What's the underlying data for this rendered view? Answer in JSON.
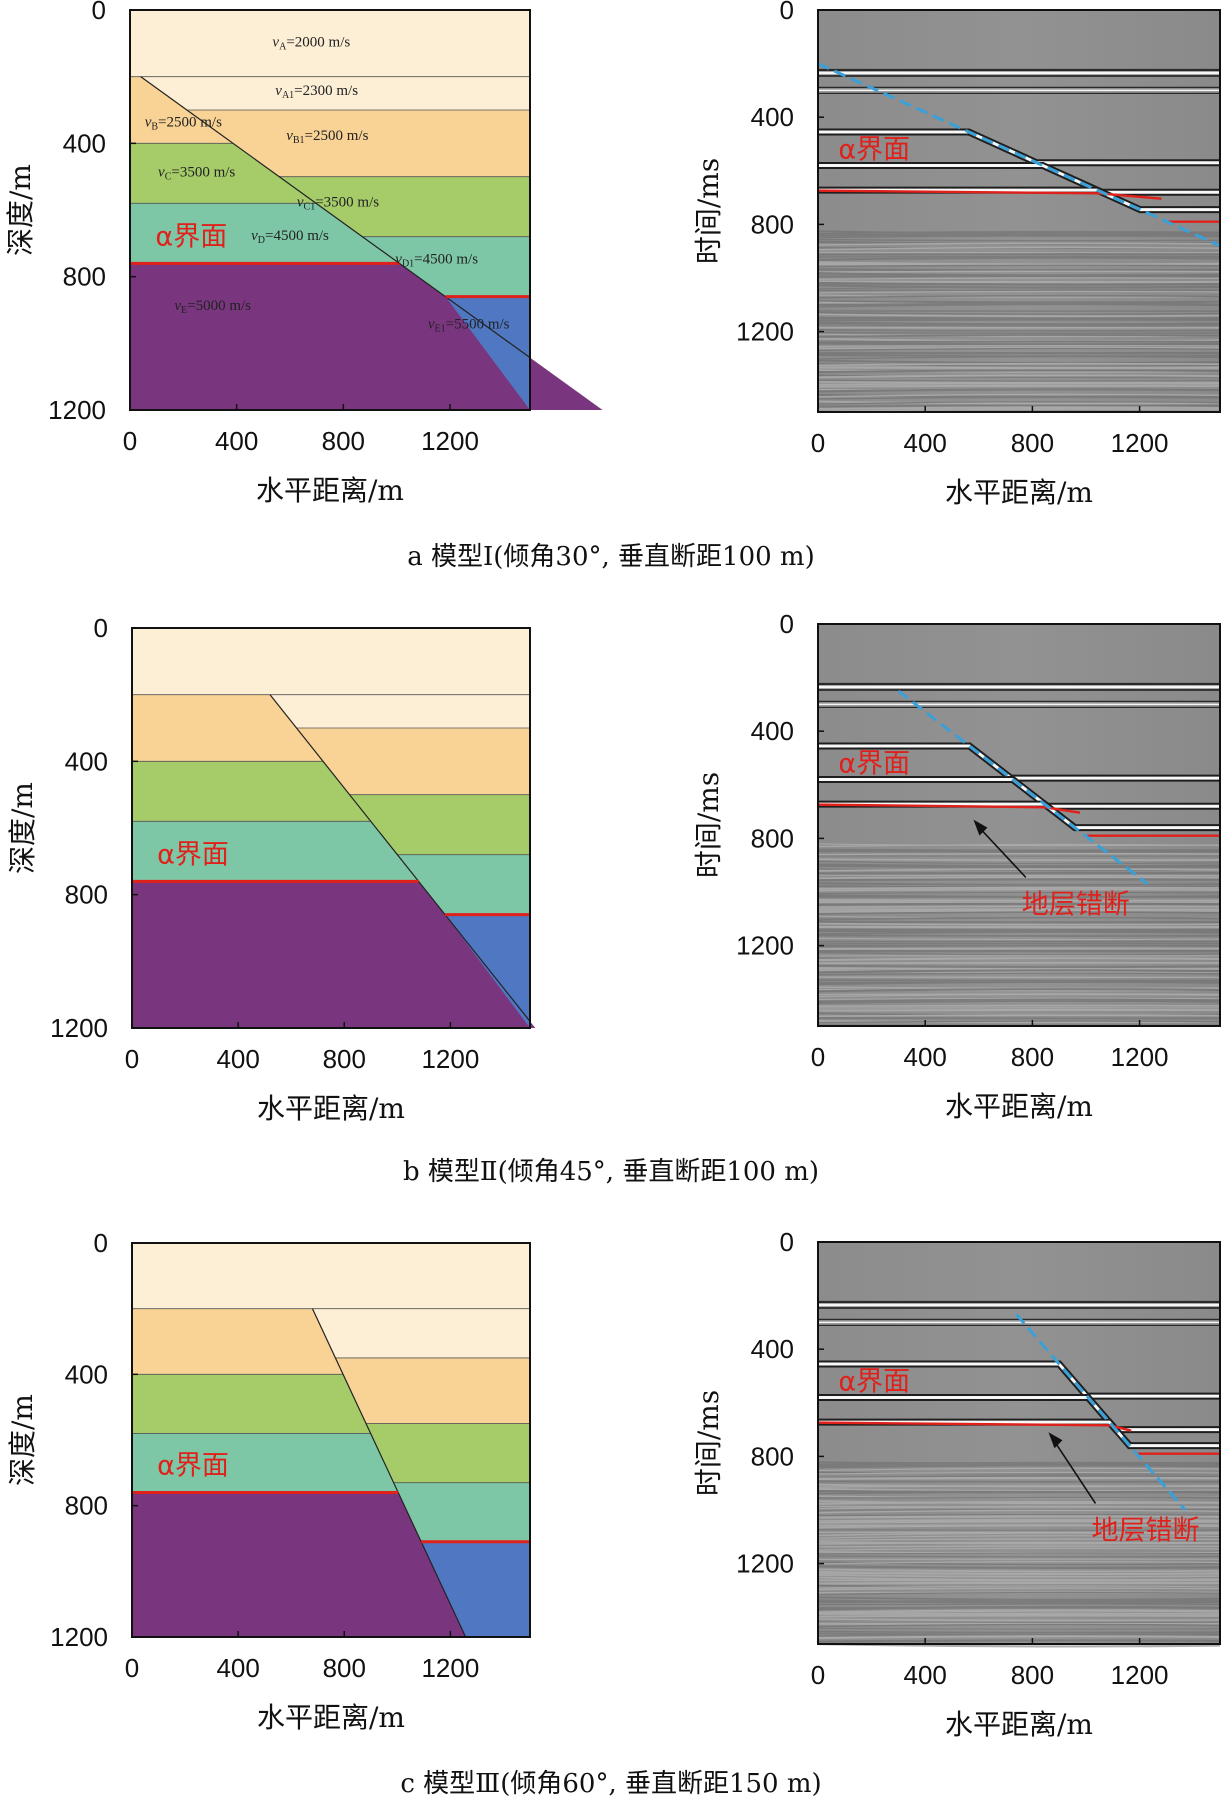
{
  "colors": {
    "layerA": "#fdefd5",
    "layerB": "#f8d395",
    "layerC": "#a6cc6a",
    "layerD": "#7ec7a6",
    "layerE": "#79367f",
    "layerE1": "#4f77c2",
    "alpha": "#e0211b",
    "faultTrace": "#3aa0d8"
  },
  "labels": {
    "depth_axis": "深度/m",
    "time_axis": "时间/ms",
    "distance_axis": "水平距离/m",
    "alpha": "α界面",
    "offset": "地层错断"
  },
  "ticks": {
    "x": [
      "0",
      "400",
      "800",
      "1200"
    ],
    "depth": [
      "0",
      "400",
      "800",
      "1200"
    ],
    "time": [
      "0",
      "400",
      "800",
      "1200"
    ]
  },
  "velocities": [
    {
      "v": "v",
      "sub": "A",
      "text": "=2000 m/s"
    },
    {
      "v": "v",
      "sub": "A1",
      "text": "=2300 m/s"
    },
    {
      "v": "v",
      "sub": "B",
      "text": "=2500 m/s"
    },
    {
      "v": "v",
      "sub": "B1",
      "text": "=2500 m/s"
    },
    {
      "v": "v",
      "sub": "C",
      "text": "=3500 m/s"
    },
    {
      "v": "v",
      "sub": "C1",
      "text": "=3500 m/s"
    },
    {
      "v": "v",
      "sub": "D",
      "text": "=4500 m/s"
    },
    {
      "v": "v",
      "sub": "D1",
      "text": "=4500 m/s"
    },
    {
      "v": "v",
      "sub": "E",
      "text": "=5000 m/s"
    },
    {
      "v": "v",
      "sub": "E1",
      "text": "=5500 m/s"
    }
  ],
  "rows": [
    {
      "caption": "a  模型Ⅰ(倾角30°, 垂直断距100 m)",
      "dip": 30,
      "throw": 100,
      "show_velocities": true,
      "show_offset": false
    },
    {
      "caption": "b  模型Ⅱ(倾角45°, 垂直断距100 m)",
      "dip": 45,
      "throw": 100,
      "show_velocities": false,
      "show_offset": true
    },
    {
      "caption": "c  模型Ⅲ(倾角60°, 垂直断距150 m)",
      "dip": 60,
      "throw": 150,
      "show_velocities": false,
      "show_offset": true
    }
  ]
}
